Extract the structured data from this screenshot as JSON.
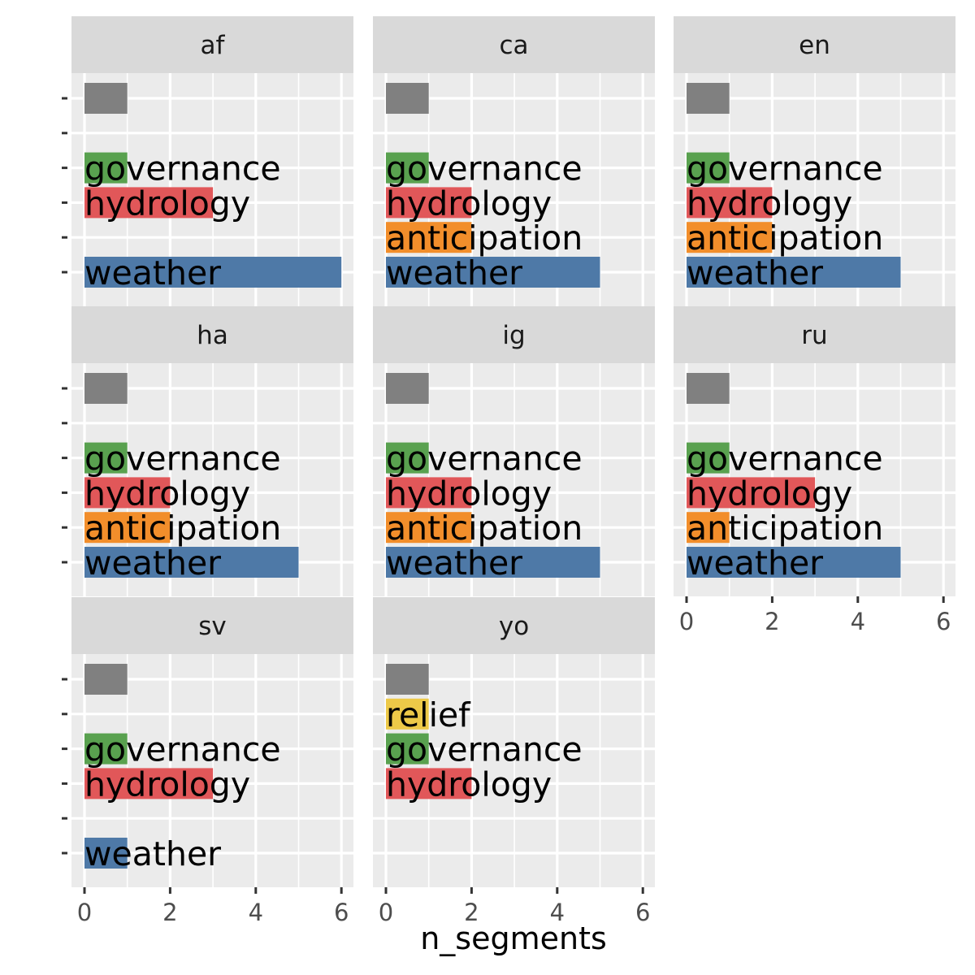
{
  "chart_data": {
    "type": "bar",
    "orientation": "horizontal",
    "faceted": true,
    "xlabel": "n_segments",
    "ylabel": "",
    "xlim": [
      0,
      6
    ],
    "x_ticks": [
      0,
      2,
      4,
      6
    ],
    "x_tick_labels": [
      "0",
      "2",
      "4",
      "6"
    ],
    "grid": true,
    "legend": "none",
    "categories": [
      "",
      "relief",
      "governance",
      "hydrology",
      "anticipation",
      "weather"
    ],
    "colors": {
      "": "#808080",
      "relief": "#EDC948",
      "governance": "#59A14F",
      "hydrology": "#E15759",
      "anticipation": "#F28E2B",
      "weather": "#4E79A7"
    },
    "facets": [
      {
        "label": "af",
        "values": {
          "": 1,
          "governance": 1,
          "hydrology": 3,
          "weather": 6
        }
      },
      {
        "label": "ca",
        "values": {
          "": 1,
          "governance": 1,
          "hydrology": 2,
          "anticipation": 2,
          "weather": 5
        }
      },
      {
        "label": "en",
        "values": {
          "": 1,
          "governance": 1,
          "hydrology": 2,
          "anticipation": 2,
          "weather": 5
        }
      },
      {
        "label": "ha",
        "values": {
          "": 1,
          "governance": 1,
          "hydrology": 2,
          "anticipation": 2,
          "weather": 5
        }
      },
      {
        "label": "ig",
        "values": {
          "": 1,
          "governance": 1,
          "hydrology": 2,
          "anticipation": 2,
          "weather": 5
        }
      },
      {
        "label": "ru",
        "values": {
          "": 1,
          "governance": 1,
          "hydrology": 3,
          "anticipation": 1,
          "weather": 5
        }
      },
      {
        "label": "sv",
        "values": {
          "": 1,
          "governance": 1,
          "hydrology": 3,
          "weather": 1
        }
      },
      {
        "label": "yo",
        "values": {
          "": 1,
          "relief": 1,
          "governance": 1,
          "hydrology": 2
        }
      }
    ]
  }
}
